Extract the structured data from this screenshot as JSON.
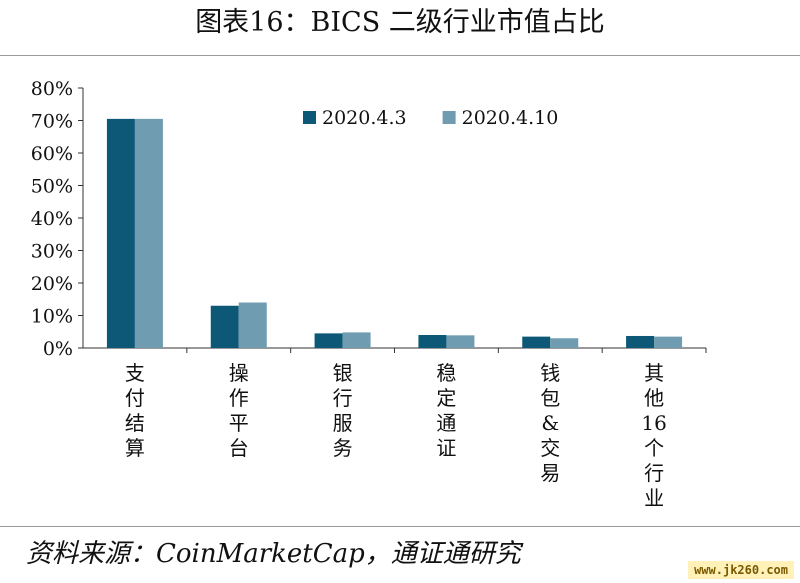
{
  "title": "图表16：BICS 二级行业市值占比",
  "source": "资料来源：CoinMarketCap，通证通研究",
  "watermark": "www.jk260.com",
  "chart_data": {
    "type": "bar",
    "categories": [
      "支付结算",
      "操作平台",
      "银行服务",
      "稳定通证",
      "钱包&交易",
      "其他16个行业"
    ],
    "series": [
      {
        "name": "2020.4.3",
        "color": "#0d5877",
        "values": [
          70.5,
          13.0,
          4.5,
          4.0,
          3.5,
          3.7
        ]
      },
      {
        "name": "2020.4.10",
        "color": "#6f9cb0",
        "values": [
          70.5,
          14.0,
          4.8,
          3.9,
          3.0,
          3.5
        ]
      }
    ],
    "yticks": [
      "0%",
      "10%",
      "20%",
      "30%",
      "40%",
      "50%",
      "60%",
      "70%",
      "80%"
    ],
    "ylim": [
      0,
      80
    ],
    "grid": false,
    "legend": "top-center"
  }
}
